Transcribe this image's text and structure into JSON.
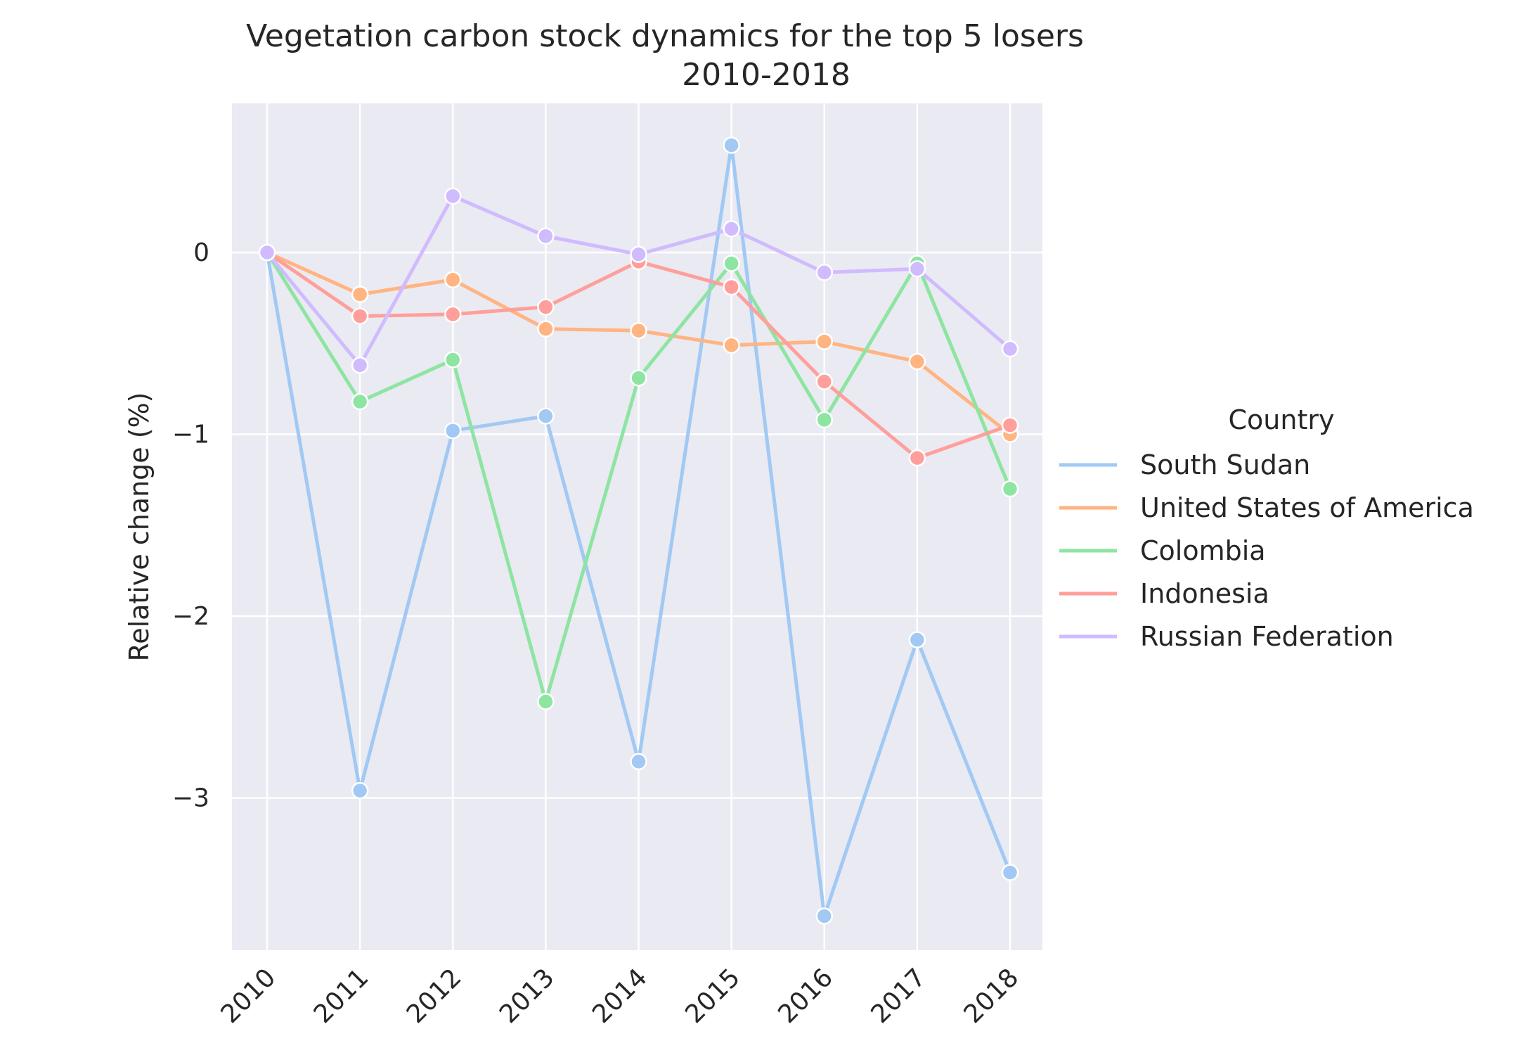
{
  "chart_data": {
    "type": "line",
    "title": "Vegetation carbon stock dynamics for the top 5 losers",
    "subtitle": "2010-2018",
    "xlabel": "",
    "ylabel": "Relative change (%)",
    "x": [
      "2010",
      "2011",
      "2012",
      "2013",
      "2014",
      "2015",
      "2016",
      "2017",
      "2018"
    ],
    "ylim": [
      -3.84,
      0.82
    ],
    "yticks": [
      0,
      -1,
      -2,
      -3
    ],
    "ytick_labels": [
      "0",
      "−1",
      "−2",
      "−3"
    ],
    "grid": true,
    "legend": {
      "title": "Country",
      "placement": "right"
    },
    "series": [
      {
        "name": "South Sudan",
        "color": "#a1c9f4",
        "values": [
          0,
          -2.96,
          -0.98,
          -0.9,
          -2.8,
          0.59,
          -3.65,
          -2.13,
          -3.41
        ]
      },
      {
        "name": "United States of America",
        "color": "#ffb482",
        "values": [
          0,
          -0.23,
          -0.15,
          -0.42,
          -0.43,
          -0.51,
          -0.49,
          -0.6,
          -1.0
        ]
      },
      {
        "name": "Colombia",
        "color": "#8de5a1",
        "values": [
          0,
          -0.82,
          -0.59,
          -2.47,
          -0.69,
          -0.06,
          -0.92,
          -0.06,
          -1.3
        ]
      },
      {
        "name": "Indonesia",
        "color": "#ff9f9b",
        "values": [
          0,
          -0.35,
          -0.34,
          -0.3,
          -0.05,
          -0.19,
          -0.71,
          -1.13,
          -0.95
        ]
      },
      {
        "name": "Russian Federation",
        "color": "#d0bbff",
        "values": [
          0,
          -0.62,
          0.31,
          0.09,
          -0.01,
          0.13,
          -0.11,
          -0.09,
          -0.53
        ]
      }
    ]
  }
}
